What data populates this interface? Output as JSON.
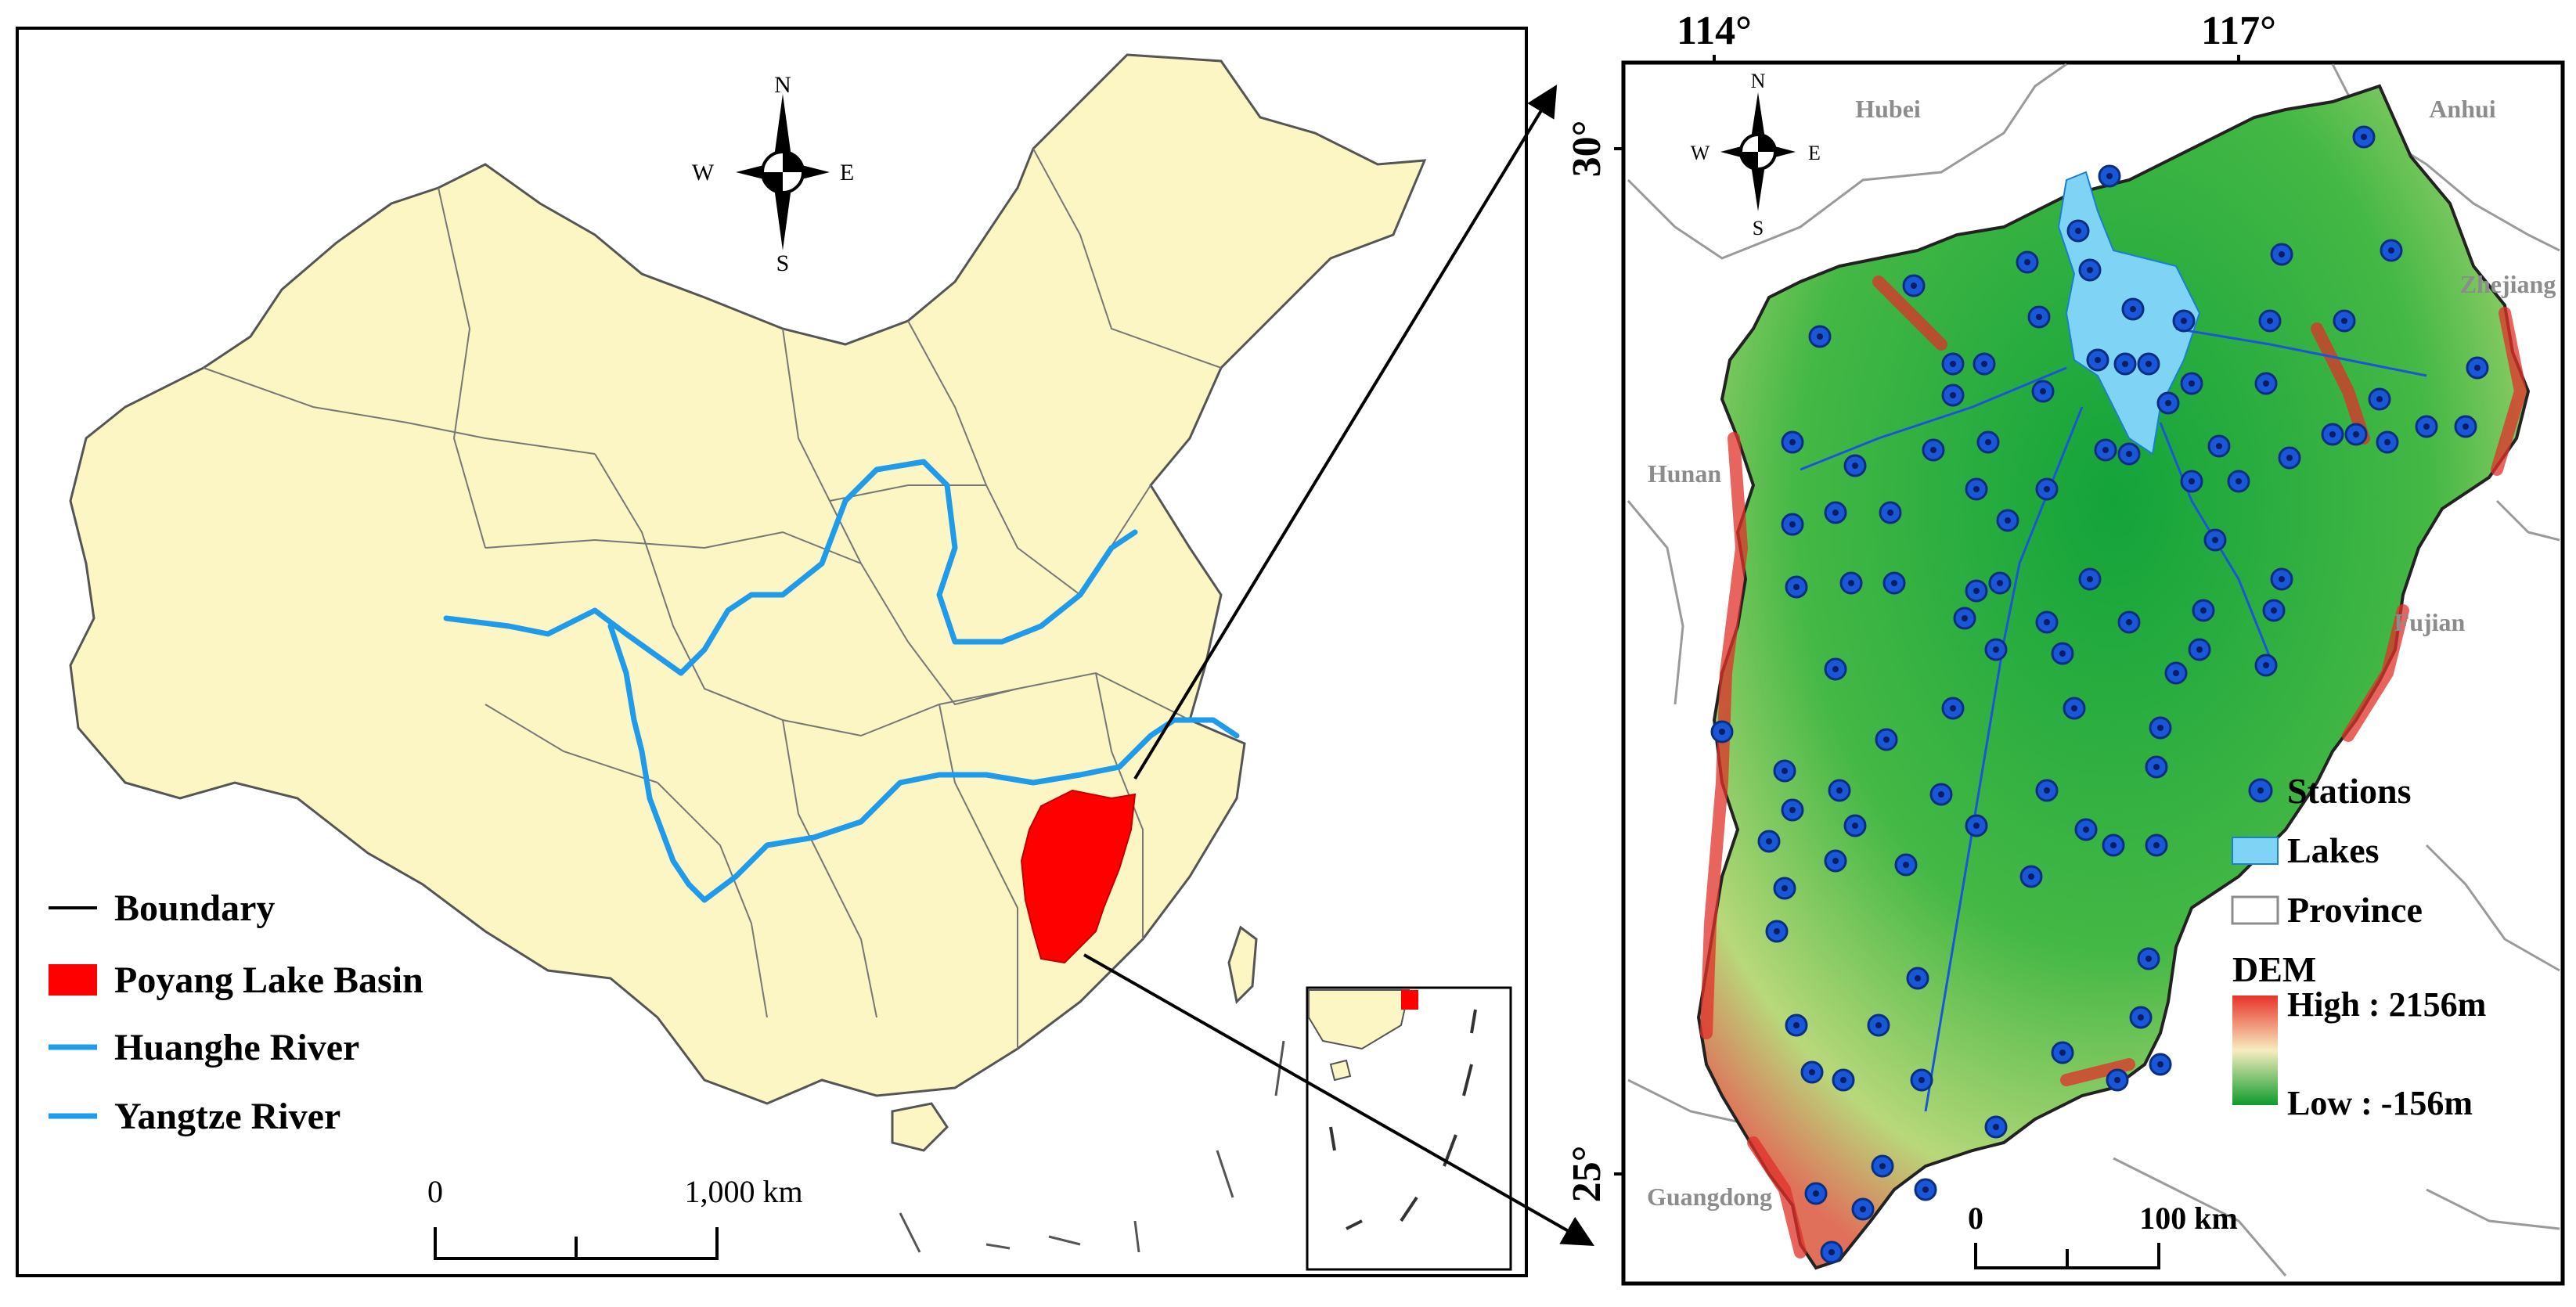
{
  "china_map": {
    "compass": {
      "n": "N",
      "s": "S",
      "e": "E",
      "w": "W"
    },
    "legend": [
      {
        "label": "Boundary",
        "symbol": "line",
        "color": "#000000"
      },
      {
        "label": "Poyang Lake Basin",
        "symbol": "fill",
        "color": "#ff0000"
      },
      {
        "label": "Huanghe River",
        "symbol": "line",
        "color": "#1f9bea"
      },
      {
        "label": "Yangtze River",
        "symbol": "line",
        "color": "#1f9bea"
      }
    ],
    "scale_bar": {
      "left_label": "0",
      "right_label": "1,000 km"
    }
  },
  "basin_map": {
    "lon_labels": [
      "114°",
      "117°"
    ],
    "lat_labels": [
      "30°",
      "25°"
    ],
    "compass": {
      "n": "N",
      "s": "S",
      "e": "E",
      "w": "W"
    },
    "province_labels": [
      "Hubei",
      "Anhui",
      "Zhejiang",
      "Hunan",
      "Fujian",
      "Guangdong"
    ],
    "legend": {
      "stations": "Stations",
      "lakes": "Lakes",
      "province": "Province",
      "dem_title": "DEM",
      "dem_high": "High : 2156m",
      "dem_low": "Low : -156m"
    },
    "scale_bar": {
      "left_label": "0",
      "right_label": "100 km"
    }
  },
  "colors": {
    "land": "#fbf6c4",
    "basin": "#ff0000",
    "river": "#1f9bea",
    "lake": "#7fd3f5",
    "station_fill": "#1a56d8",
    "dem_high": "#e8332a",
    "dem_mid": "#f7ecc0",
    "dem_low": "#0e9b2c"
  }
}
